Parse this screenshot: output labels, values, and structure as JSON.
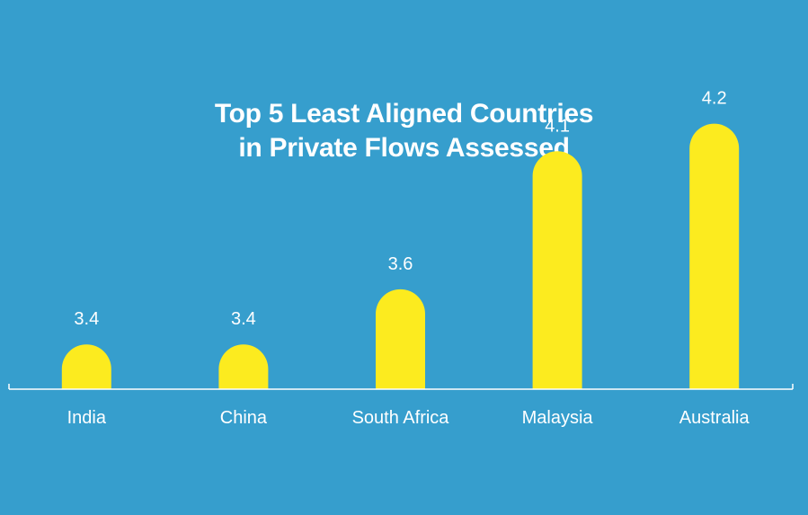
{
  "chart_data": {
    "type": "bar",
    "title_lines": [
      "Top 5 Least Aligned Countries",
      "in Private Flows Assessed"
    ],
    "categories": [
      "India",
      "China",
      "South Africa",
      "Malaysia",
      "Australia"
    ],
    "values": [
      3.4,
      3.4,
      3.6,
      4.1,
      4.2
    ],
    "value_labels": [
      "3.4",
      "3.4",
      "3.6",
      "4.1",
      "4.2"
    ],
    "xlabel": "",
    "ylabel": "",
    "grid": false,
    "legend": "none",
    "colors": {
      "background": "#369ECD",
      "bar": "#FCEB1F",
      "text": "#FFFFFF",
      "axis": "#FFFFFF"
    }
  }
}
